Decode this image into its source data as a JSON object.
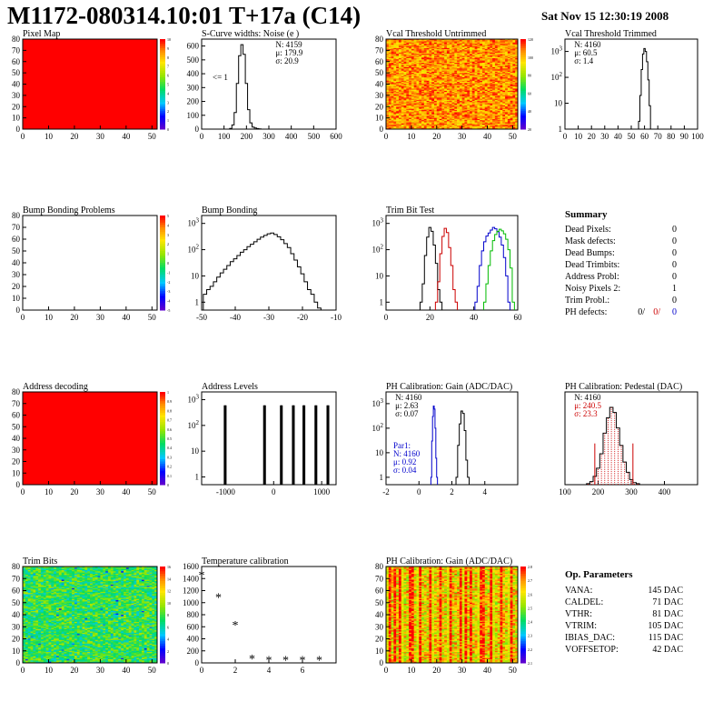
{
  "header": {
    "title": "M1172-080314.10:01 T+17a (C14)",
    "timestamp": "Sat Nov 15 12:30:19 2008"
  },
  "colors": {
    "map_full": "#ff0000",
    "histogram_line": "#000000",
    "trim_red": "#cc0000",
    "trim_blue": "#0000cc",
    "trim_green": "#00bb00",
    "param_red": "#cc0000",
    "param_blue": "#0000cc",
    "axis": "#000000"
  },
  "summary": {
    "title": "Summary",
    "rows": [
      {
        "label": "Dead Pixels:",
        "value": "0"
      },
      {
        "label": "Mask defects:",
        "value": "0"
      },
      {
        "label": "Dead Bumps:",
        "value": "0"
      },
      {
        "label": "Dead Trimbits:",
        "value": "0"
      },
      {
        "label": "Address Probl:",
        "value": "0"
      },
      {
        "label": "Noisy Pixels 2:",
        "value": "1"
      },
      {
        "label": "Trim Probl.:",
        "value": "0"
      }
    ],
    "ph_defects": {
      "label": "PH defects:",
      "values": [
        "0/",
        "0/",
        "0"
      ]
    }
  },
  "op_parameters": {
    "title": "Op. Parameters",
    "rows": [
      {
        "name": "VANA:",
        "value": "145 DAC"
      },
      {
        "name": "CALDEL:",
        "value": "71 DAC"
      },
      {
        "name": "VTHR:",
        "value": "81 DAC"
      },
      {
        "name": "VTRIM:",
        "value": "105 DAC"
      },
      {
        "name": "IBIAS_DAC:",
        "value": "115 DAC"
      },
      {
        "name": "VOFFSETOP:",
        "value": "42 DAC"
      }
    ]
  },
  "chart_data": [
    {
      "id": "pixel-map",
      "type": "heatmap",
      "title": "Pixel Map",
      "xlim": [
        0,
        52
      ],
      "ylim": [
        0,
        80
      ],
      "xticks": [
        0,
        10,
        20,
        30,
        40,
        50
      ],
      "yticks": [
        0,
        10,
        20,
        30,
        40,
        50,
        60,
        70,
        80
      ],
      "fill": "uniform",
      "value": 10,
      "zticks": [
        "10",
        "9",
        "8",
        "7",
        "6",
        "5",
        "4",
        "3",
        "2",
        "1",
        "0"
      ]
    },
    {
      "id": "noise",
      "type": "line",
      "title": "S-Curve widths: Noise (e )",
      "xlim": [
        0,
        600
      ],
      "ylim": [
        0,
        650
      ],
      "xticks": [
        0,
        100,
        200,
        300,
        400,
        500,
        600
      ],
      "yticks": [
        0,
        100,
        200,
        300,
        400,
        500,
        600
      ],
      "annotation": "<= 1",
      "stats": [
        "N: 4159",
        "μ: 179.9",
        "σ: 20.9"
      ],
      "x": [
        120,
        130,
        140,
        150,
        160,
        170,
        180,
        190,
        200,
        210,
        220,
        230,
        240,
        250,
        260,
        270
      ],
      "y": [
        0,
        5,
        30,
        120,
        330,
        530,
        610,
        540,
        330,
        140,
        45,
        15,
        8,
        4,
        2,
        0
      ]
    },
    {
      "id": "vcal-untrimmed",
      "type": "heatmap",
      "title": "Vcal Threshold Untrimmed",
      "xlim": [
        0,
        52
      ],
      "ylim": [
        0,
        80
      ],
      "xticks": [
        0,
        10,
        20,
        30,
        40,
        50
      ],
      "yticks": [
        0,
        10,
        20,
        30,
        40,
        50,
        60,
        70,
        80
      ],
      "fill": "noise-red-orange",
      "zticks": [
        "120",
        "100",
        "80",
        "60",
        "40",
        "20"
      ]
    },
    {
      "id": "vcal-trimmed",
      "type": "line",
      "title": "Vcal Threshold Trimmed",
      "xscale": "linear",
      "yscale": "log",
      "xlim": [
        0,
        100
      ],
      "ylim": [
        1,
        3000
      ],
      "xticks": [
        0,
        10,
        20,
        30,
        40,
        50,
        60,
        70,
        80,
        90,
        100
      ],
      "yticks": [
        1,
        10,
        100,
        1000
      ],
      "stats": [
        "N: 4160",
        "μ: 60.5",
        "σ: 1.4"
      ],
      "x": [
        56,
        57,
        58,
        59,
        60,
        61,
        62,
        63,
        64,
        65
      ],
      "y": [
        2,
        20,
        200,
        800,
        1300,
        1000,
        400,
        80,
        8,
        1
      ]
    },
    {
      "id": "bump-bonding-problems",
      "type": "heatmap",
      "title": "Bump Bonding Problems",
      "xlim": [
        0,
        52
      ],
      "ylim": [
        0,
        80
      ],
      "xticks": [
        0,
        10,
        20,
        30,
        40,
        50
      ],
      "yticks": [
        0,
        10,
        20,
        30,
        40,
        50,
        60,
        70,
        80
      ],
      "fill": "empty",
      "zticks": [
        "5",
        "4",
        "3",
        "2",
        "1",
        "0",
        "-1",
        "-2",
        "-3",
        "-4",
        "-5"
      ]
    },
    {
      "id": "bump-bonding",
      "type": "line",
      "title": "Bump Bonding",
      "yscale": "log",
      "xlim": [
        -50,
        -10
      ],
      "ylim": [
        0.5,
        2000
      ],
      "xticks": [
        -50,
        -40,
        -30,
        -20,
        -10
      ],
      "yticks": [
        1,
        10,
        100,
        1000
      ],
      "x": [
        -49,
        -48,
        -47,
        -46,
        -45,
        -44,
        -43,
        -42,
        -41,
        -40,
        -39,
        -38,
        -37,
        -36,
        -35,
        -34,
        -33,
        -32,
        -31,
        -30,
        -29,
        -28,
        -27,
        -26,
        -25,
        -24,
        -23,
        -22,
        -21,
        -20,
        -19,
        -18,
        -17,
        -16,
        -15
      ],
      "y": [
        2,
        3,
        4,
        6,
        9,
        13,
        18,
        25,
        35,
        45,
        60,
        80,
        100,
        130,
        160,
        200,
        250,
        300,
        350,
        400,
        430,
        380,
        310,
        240,
        170,
        120,
        70,
        40,
        22,
        12,
        6,
        3,
        2,
        1,
        0.6
      ]
    },
    {
      "id": "trim-bit-test",
      "type": "line",
      "title": "Trim Bit Test",
      "yscale": "log",
      "xlim": [
        0,
        60
      ],
      "ylim": [
        0.5,
        2000
      ],
      "xticks": [
        0,
        20,
        40,
        60
      ],
      "yticks": [
        1,
        10,
        100,
        1000
      ],
      "series": [
        {
          "color": "#000000",
          "x": [
            16,
            17,
            18,
            19,
            20,
            21,
            22,
            23,
            24,
            25
          ],
          "y": [
            1,
            5,
            60,
            300,
            700,
            500,
            150,
            30,
            3,
            1
          ]
        },
        {
          "color": "#cc0000",
          "x": [
            23,
            24,
            25,
            26,
            27,
            28,
            29,
            30,
            31,
            32
          ],
          "y": [
            1,
            6,
            70,
            320,
            650,
            450,
            120,
            25,
            3,
            1
          ]
        },
        {
          "color": "#0000cc",
          "x": [
            41,
            42,
            43,
            44,
            45,
            46,
            47,
            48,
            49,
            50,
            51,
            52,
            53,
            54,
            55,
            56
          ],
          "y": [
            1,
            4,
            25,
            90,
            200,
            330,
            430,
            560,
            700,
            620,
            480,
            300,
            150,
            50,
            10,
            1
          ]
        },
        {
          "color": "#00bb00",
          "x": [
            45,
            46,
            47,
            48,
            49,
            50,
            51,
            52,
            53,
            54,
            55,
            56,
            57,
            58
          ],
          "y": [
            1,
            5,
            25,
            90,
            220,
            380,
            500,
            600,
            520,
            400,
            250,
            100,
            20,
            1
          ]
        }
      ]
    },
    {
      "id": "address-decoding",
      "type": "heatmap",
      "title": "Address decoding",
      "xlim": [
        0,
        52
      ],
      "ylim": [
        0,
        80
      ],
      "xticks": [
        0,
        10,
        20,
        30,
        40,
        50
      ],
      "yticks": [
        0,
        10,
        20,
        30,
        40,
        50,
        60,
        70,
        80
      ],
      "fill": "uniform",
      "value": 1,
      "zticks": [
        "1",
        "0.9",
        "0.8",
        "0.7",
        "0.6",
        "0.5",
        "0.4",
        "0.3",
        "0.2",
        "0.1",
        "0"
      ]
    },
    {
      "id": "address-levels",
      "type": "bar",
      "title": "Address Levels",
      "yscale": "log",
      "xlim": [
        -1500,
        1300
      ],
      "ylim": [
        0.5,
        2000
      ],
      "xticks": [
        -1000,
        0,
        1000
      ],
      "yticks": [
        1,
        10,
        100,
        1000
      ],
      "x": [
        -1020,
        -1000,
        -200,
        -180,
        150,
        170,
        400,
        420,
        620,
        640,
        870,
        890,
        1120,
        1140
      ],
      "y": [
        600,
        600,
        600,
        600,
        600,
        600,
        600,
        600,
        600,
        600,
        600,
        600,
        600,
        600
      ]
    },
    {
      "id": "ph-gain",
      "type": "line",
      "title": "PH Calibration: Gain (ADC/DAC)",
      "yscale": "log",
      "xlim": [
        -2,
        6
      ],
      "ylim": [
        0.5,
        3000
      ],
      "xticks": [
        -2,
        0,
        2,
        4
      ],
      "yticks": [
        1,
        10,
        100,
        1000
      ],
      "stats": [
        "N: 4160",
        "μ: 2.63",
        "σ: 0.07"
      ],
      "stats2": [
        "Par1:",
        "N: 4160",
        "μ: 0.92",
        "σ: 0.04"
      ],
      "series": [
        {
          "color": "#000000",
          "x": [
            2.3,
            2.4,
            2.5,
            2.6,
            2.7,
            2.8,
            2.9,
            3.0
          ],
          "y": [
            1,
            20,
            150,
            500,
            400,
            80,
            5,
            1
          ]
        },
        {
          "color": "#0000cc",
          "x": [
            0.75,
            0.8,
            0.85,
            0.9,
            0.95,
            1.0,
            1.05,
            1.1
          ],
          "y": [
            1,
            30,
            300,
            800,
            600,
            100,
            6,
            1
          ]
        }
      ]
    },
    {
      "id": "ph-pedestal",
      "type": "line",
      "title": "PH Calibration: Pedestal (DAC)",
      "xlim": [
        100,
        500
      ],
      "ylim": [
        0,
        90
      ],
      "xticks": [
        100,
        200,
        300,
        400
      ],
      "stats": [
        "N: 4160",
        "μ: 240.5",
        "σ: 23.3"
      ],
      "x": [
        170,
        180,
        190,
        200,
        210,
        220,
        230,
        240,
        250,
        260,
        270,
        280,
        290,
        300,
        310,
        320
      ],
      "y": [
        1,
        3,
        8,
        16,
        30,
        50,
        65,
        75,
        70,
        55,
        38,
        22,
        12,
        5,
        2,
        1
      ]
    },
    {
      "id": "trim-bits",
      "type": "heatmap",
      "title": "Trim Bits",
      "xlim": [
        0,
        52
      ],
      "ylim": [
        0,
        80
      ],
      "xticks": [
        0,
        10,
        20,
        30,
        40,
        50
      ],
      "yticks": [
        0,
        10,
        20,
        30,
        40,
        50,
        60,
        70,
        80
      ],
      "fill": "noise-green",
      "zticks": [
        "16",
        "14",
        "12",
        "10",
        "8",
        "6",
        "4",
        "2",
        "0"
      ]
    },
    {
      "id": "temperature-calibration",
      "type": "scatter",
      "title": "Temperature calibration",
      "xlim": [
        0,
        8
      ],
      "ylim": [
        0,
        1600
      ],
      "xticks": [
        0,
        2,
        4,
        6
      ],
      "yticks": [
        0,
        200,
        400,
        600,
        800,
        1000,
        1200,
        1400,
        1600
      ],
      "x": [
        0,
        1,
        2,
        3,
        4,
        5,
        6,
        7
      ],
      "y": [
        1450,
        1080,
        620,
        60,
        40,
        40,
        40,
        40
      ]
    },
    {
      "id": "ph-gain-map",
      "type": "heatmap",
      "title": "PH Calibration: Gain (ADC/DAC)",
      "xlim": [
        0,
        52
      ],
      "ylim": [
        0,
        80
      ],
      "xticks": [
        0,
        10,
        20,
        30,
        40,
        50
      ],
      "yticks": [
        0,
        10,
        20,
        30,
        40,
        50,
        60,
        70,
        80
      ],
      "fill": "noise-stripes",
      "zticks": [
        "2.8",
        "2.7",
        "2.6",
        "2.5",
        "2.4",
        "2.3",
        "2.2",
        "2.1"
      ]
    }
  ]
}
